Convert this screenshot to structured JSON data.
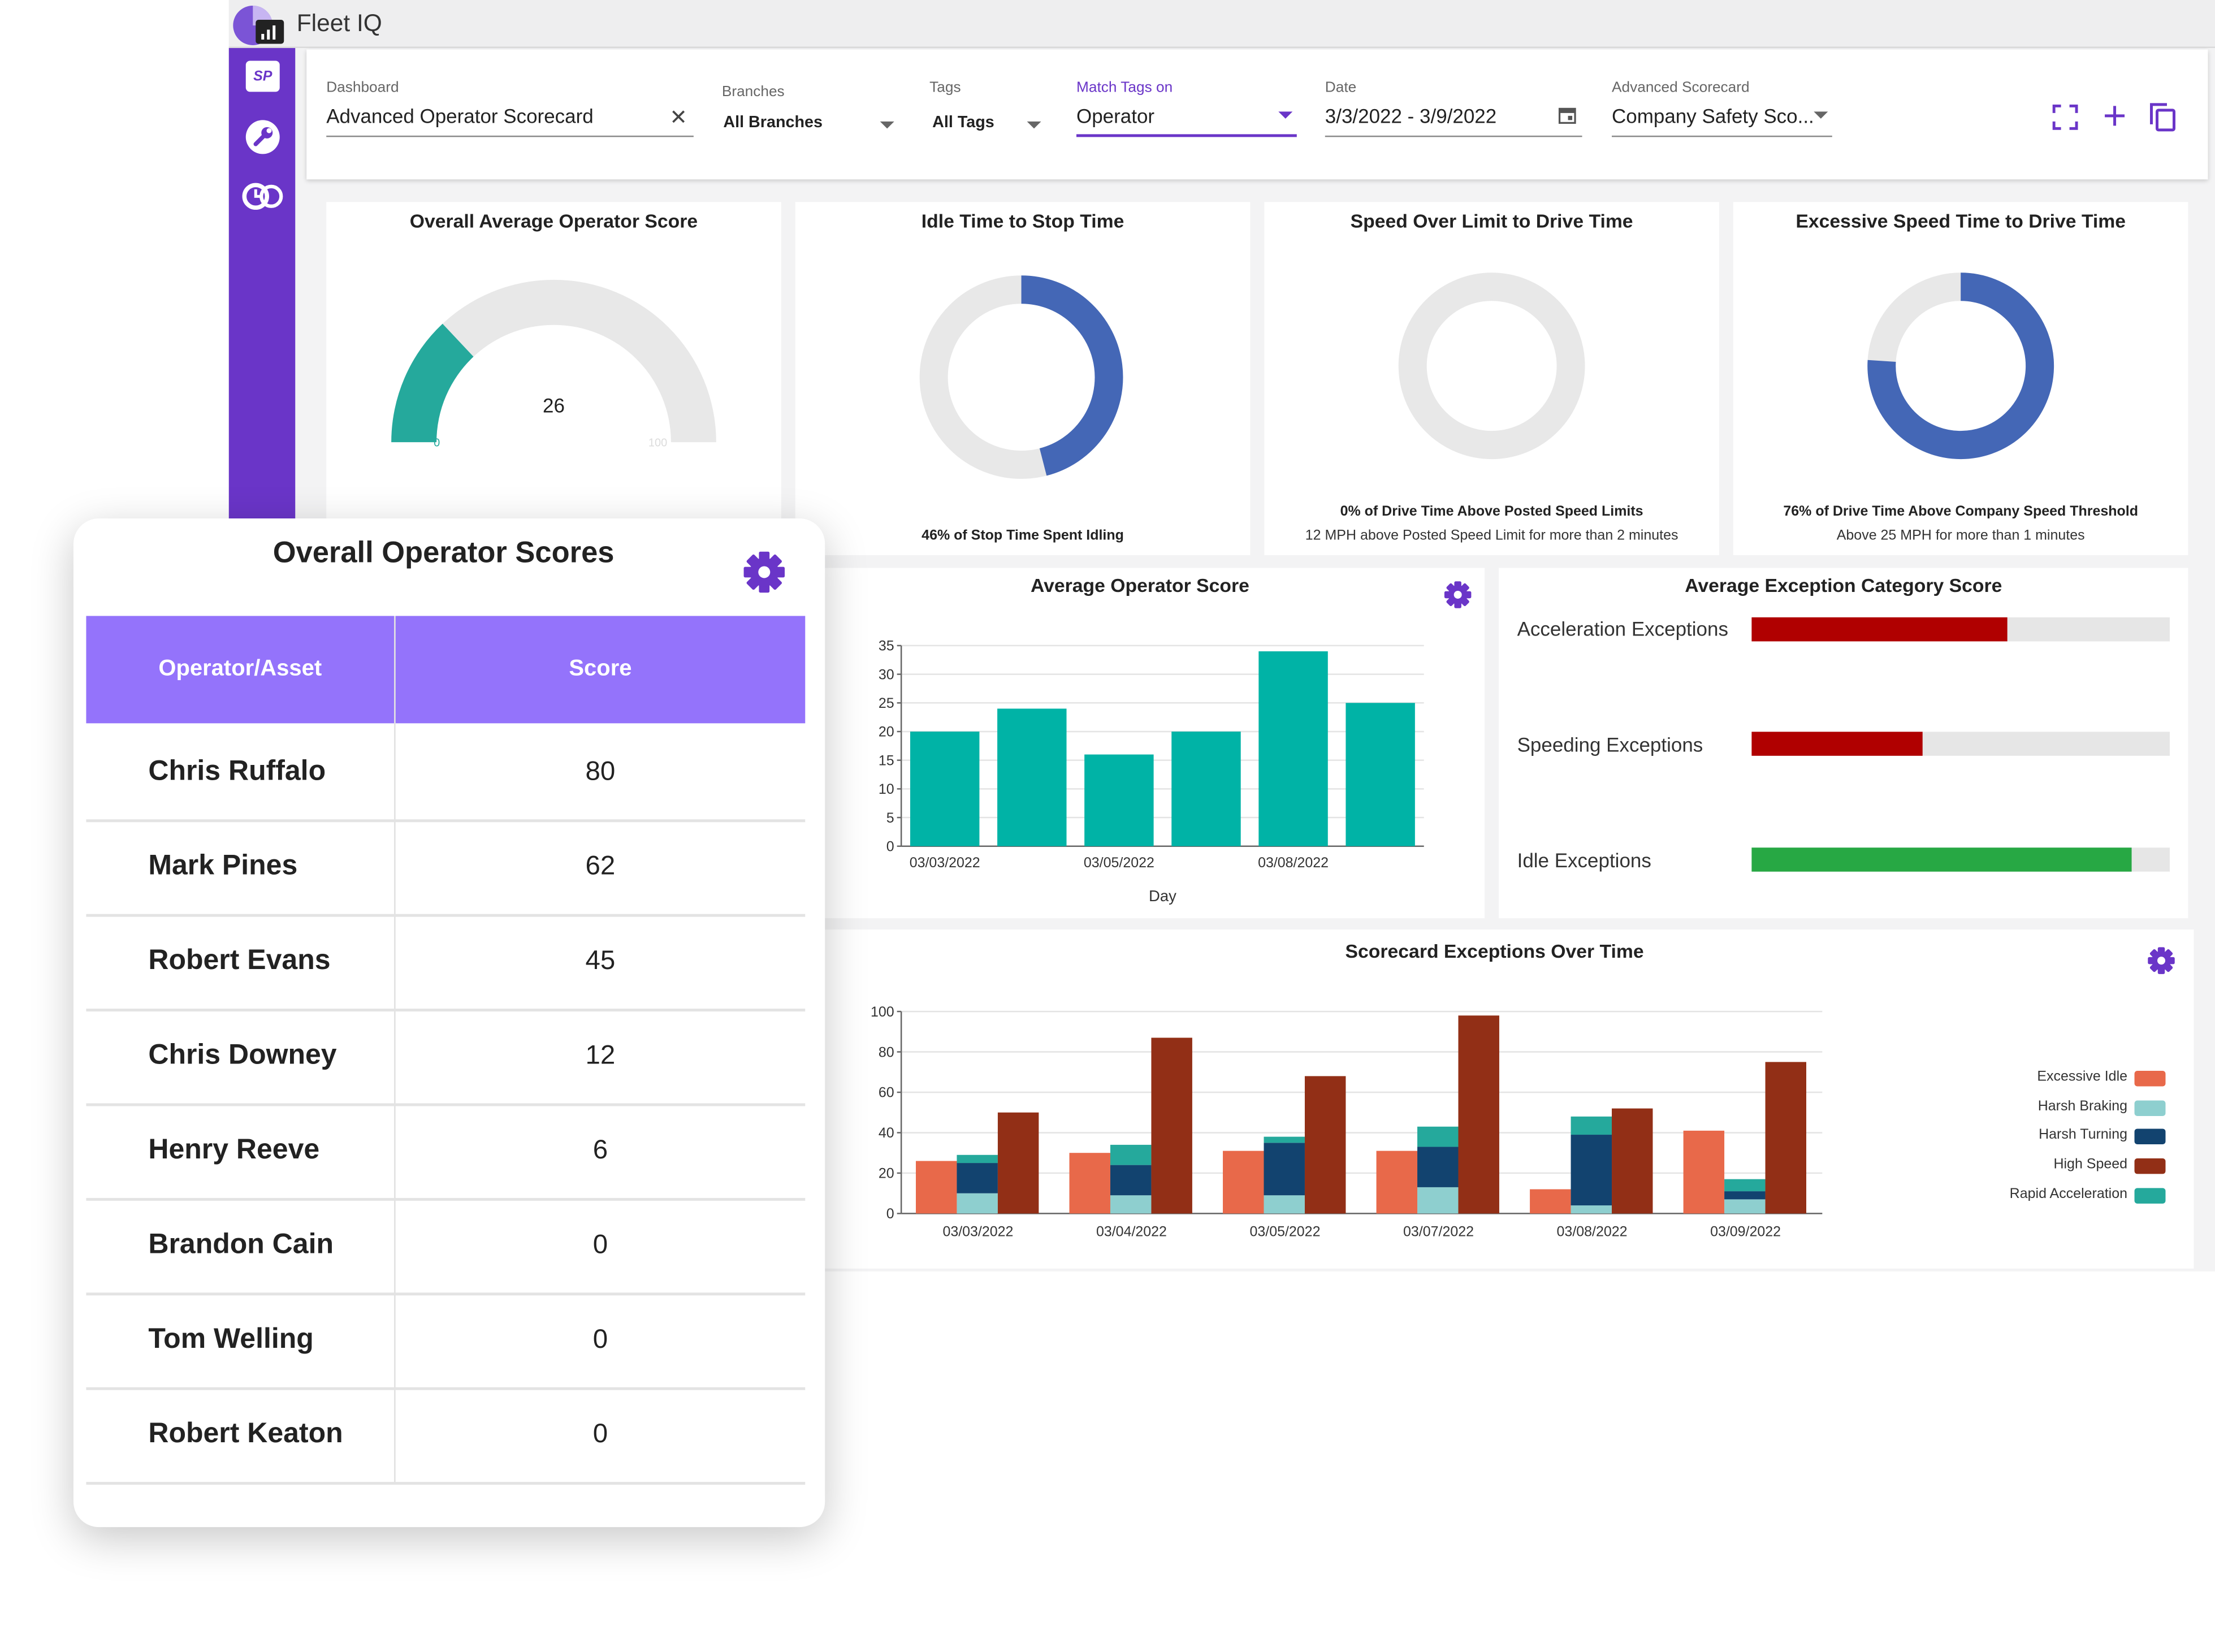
{
  "app": {
    "title": "Fleet IQ",
    "sidebar_logo_text": "SP"
  },
  "filters": {
    "dashboard": {
      "label": "Dashboard",
      "value": "Advanced Operator Scorecard"
    },
    "branches": {
      "label": "Branches",
      "value": "All Branches"
    },
    "tags": {
      "label": "Tags",
      "value": "All Tags"
    },
    "match_tags": {
      "label": "Match Tags on",
      "value": "Operator"
    },
    "date": {
      "label": "Date",
      "value": "3/3/2022 - 3/9/2022"
    },
    "scorecard": {
      "label": "Advanced Scorecard",
      "value": "Company Safety Sco..."
    }
  },
  "colors": {
    "accent": "#6a35c8",
    "teal": "#25a99c",
    "blue": "#4467b6",
    "header_purple": "#9473fb"
  },
  "gauge": {
    "title": "Overall Average Operator Score",
    "value": "26",
    "min": "0",
    "max": "100",
    "fraction": 0.26
  },
  "donuts": [
    {
      "title": "Idle Time to Stop Time",
      "fraction": 0.46,
      "caption_bold": "46% of Stop Time Spent Idling",
      "caption": ""
    },
    {
      "title": "Speed Over Limit to Drive Time",
      "fraction": 0.0,
      "caption_bold": "0% of Drive Time Above Posted Speed Limits",
      "caption": "12 MPH above Posted Speed Limit for more than 2 minutes"
    },
    {
      "title": "Excessive Speed Time to Drive Time",
      "fraction": 0.76,
      "caption_bold": "76% of Drive Time Above Company Speed Threshold",
      "caption": "Above 25 MPH for more than 1 minutes"
    }
  ],
  "exceptions": {
    "title": "Average Exception Category Score",
    "items": [
      {
        "label": "Acceleration Exceptions",
        "fraction": 0.61,
        "color": "#b00000"
      },
      {
        "label": "Speeding Exceptions",
        "fraction": 0.41,
        "color": "#b00000"
      },
      {
        "label": "Idle Exceptions",
        "fraction": 0.91,
        "color": "#27a844"
      }
    ]
  },
  "operator_table": {
    "title": "Overall Operator Scores",
    "headers": [
      "Operator/Asset",
      "Score"
    ],
    "rows": [
      {
        "name": "Chris Ruffalo",
        "score": "80"
      },
      {
        "name": "Mark Pines",
        "score": "62"
      },
      {
        "name": "Robert Evans",
        "score": "45"
      },
      {
        "name": "Chris Downey",
        "score": "12"
      },
      {
        "name": "Henry Reeve",
        "score": "6"
      },
      {
        "name": "Brandon Cain",
        "score": "0"
      },
      {
        "name": "Tom Welling",
        "score": "0"
      },
      {
        "name": "Robert Keaton",
        "score": "0"
      }
    ]
  },
  "chart_data": [
    {
      "type": "bar",
      "title": "Average Operator Score",
      "xlabel": "Day",
      "ylabel": "",
      "categories": [
        "03/03/2022",
        "03/04/2022",
        "03/05/2022",
        "03/07/2022",
        "03/08/2022",
        "03/09/2022"
      ],
      "x_tick_labels": [
        "03/03/2022",
        "03/05/2022",
        "03/08/2022"
      ],
      "values": [
        20,
        24,
        16,
        20,
        34,
        25
      ],
      "ylim": [
        0,
        35
      ],
      "yticks": [
        0,
        5,
        10,
        15,
        20,
        25,
        30,
        35
      ],
      "grid": true,
      "color": "#00b3a6"
    },
    {
      "type": "bar",
      "title": "Scorecard Exceptions Over Time",
      "xlabel": "",
      "ylabel": "",
      "categories": [
        "03/03/2022",
        "03/04/2022",
        "03/05/2022",
        "03/07/2022",
        "03/08/2022",
        "03/09/2022"
      ],
      "ylim": [
        0,
        100
      ],
      "yticks": [
        0,
        20,
        40,
        60,
        80,
        100
      ],
      "legend_position": "right",
      "series": [
        {
          "name": "Excessive Idle",
          "color": "#e8694a",
          "values": [
            26,
            30,
            31,
            31,
            12,
            41
          ]
        },
        {
          "name": "Harsh Braking",
          "color": "#8ecfcf",
          "values": [
            10,
            9,
            9,
            13,
            4,
            7
          ]
        },
        {
          "name": "Harsh Turning",
          "color": "#12436f",
          "values": [
            15,
            15,
            26,
            20,
            35,
            4
          ]
        },
        {
          "name": "High Speed",
          "color": "#922f16",
          "values": [
            50,
            87,
            68,
            98,
            52,
            75
          ]
        },
        {
          "name": "Rapid Acceleration",
          "color": "#25a99c",
          "values": [
            4,
            10,
            3,
            10,
            9,
            6
          ]
        }
      ]
    }
  ]
}
